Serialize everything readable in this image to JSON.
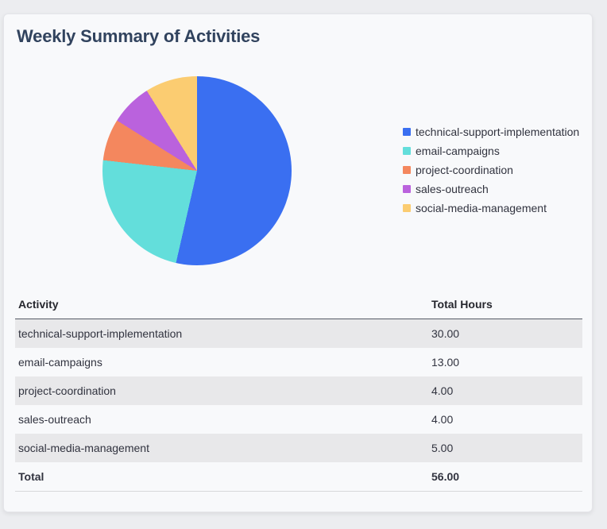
{
  "page_title": "Weekly Summary of Activities",
  "colors": {
    "page_bg": "#ECEDF0",
    "card_bg": "#F8F9FB",
    "title_text": "#31435E",
    "body_text": "#31333F",
    "row_stripe": "#E8E8EA",
    "header_border": "#565B66"
  },
  "chart_data": {
    "type": "pie",
    "categories": [
      "technical-support-implementation",
      "email-campaigns",
      "project-coordination",
      "sales-outreach",
      "social-media-management"
    ],
    "values": [
      30,
      13,
      4,
      4,
      5
    ],
    "colors": [
      "#3A6FF1",
      "#63DEDB",
      "#F4875E",
      "#BA62DD",
      "#FBCC71"
    ],
    "title": "",
    "legend_position": "right",
    "start_angle_deg": 0,
    "direction": "clockwise"
  },
  "table": {
    "headers": [
      "Activity",
      "Total Hours"
    ],
    "rows": [
      [
        "technical-support-implementation",
        "30.00"
      ],
      [
        "email-campaigns",
        "13.00"
      ],
      [
        "project-coordination",
        "4.00"
      ],
      [
        "sales-outreach",
        "4.00"
      ],
      [
        "social-media-management",
        "5.00"
      ]
    ],
    "total_label": "Total",
    "total_value": "56.00"
  }
}
